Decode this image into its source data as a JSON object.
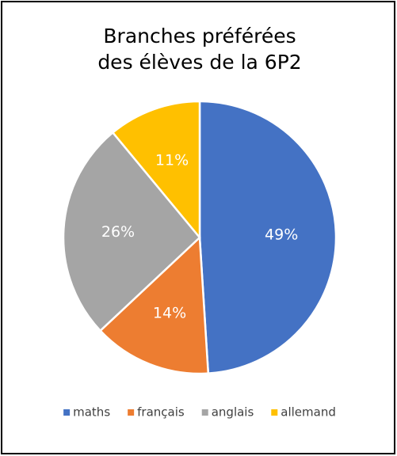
{
  "chart_data": {
    "type": "pie",
    "title": [
      "Branches préférées",
      "des élèves de la 6P2"
    ],
    "categories": [
      "maths",
      "français",
      "anglais",
      "allemand"
    ],
    "values": [
      49,
      14,
      26,
      11
    ],
    "value_labels": [
      "49%",
      "14%",
      "26%",
      "11%"
    ],
    "colors": [
      "#4472c4",
      "#ed7d31",
      "#a5a5a5",
      "#ffc000"
    ],
    "legend": "bottom"
  }
}
